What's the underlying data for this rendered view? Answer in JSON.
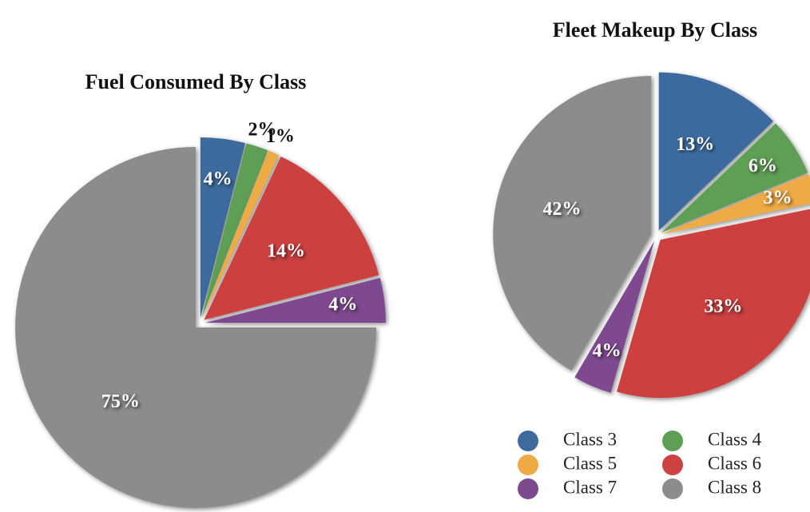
{
  "chart_data": [
    {
      "type": "pie",
      "title": "Fuel Consumed By Class",
      "values": [
        4,
        2,
        1,
        14,
        4,
        75
      ],
      "colors": [
        "#3e6a9e",
        "#5f9e55",
        "#eeaa44",
        "#cc4141",
        "#7e4a8e",
        "#8c8c8c"
      ]
    },
    {
      "type": "pie",
      "title": "Fleet Makeup By Class",
      "categories": [
        "Class 3",
        "Class 4",
        "Class 5",
        "Class 6",
        "Class 7",
        "Class 8"
      ],
      "values": [
        13,
        6,
        3,
        33,
        4,
        42
      ],
      "colors": [
        "#3e6a9e",
        "#5f9e55",
        "#eeaa44",
        "#cc4141",
        "#7e4a8e",
        "#8c8c8c"
      ],
      "legend": "bottom-right"
    }
  ]
}
